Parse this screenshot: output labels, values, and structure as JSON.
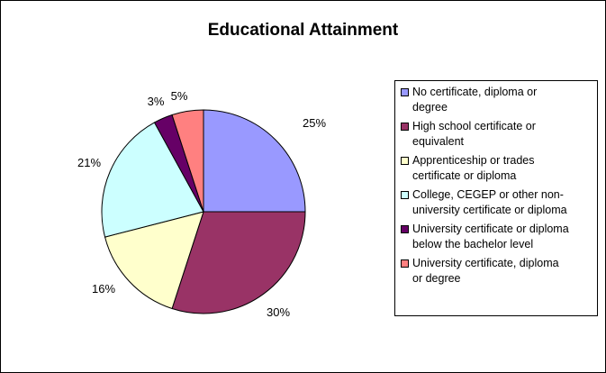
{
  "chart_data": {
    "type": "pie",
    "title": "Educational Attainment",
    "categories": [
      "No certificate, diploma or degree",
      "High school certificate or equivalent",
      "Apprenticeship or trades certificate or diploma",
      "College, CEGEP or other non-university certificate or diploma",
      "University certificate or diploma below  the bachelor level",
      "University certificate, diploma or degree"
    ],
    "values": [
      25,
      30,
      16,
      21,
      3,
      5
    ],
    "labels": [
      "25%",
      "30%",
      "16%",
      "21%",
      "3%",
      "5%"
    ],
    "colors": [
      "#9999FF",
      "#993366",
      "#FFFFCC",
      "#CCFFFF",
      "#660066",
      "#FF8080"
    ],
    "legend": {
      "position": "right",
      "lines": [
        [
          "No certificate, diploma or",
          "degree"
        ],
        [
          "High school certificate or",
          "equivalent"
        ],
        [
          "Apprenticeship or trades",
          "certificate or diploma"
        ],
        [
          "College, CEGEP or other non-",
          "university certificate or diploma"
        ],
        [
          "University certificate or diploma",
          "below  the bachelor level"
        ],
        [
          "University certificate, diploma",
          "or degree"
        ]
      ]
    }
  }
}
